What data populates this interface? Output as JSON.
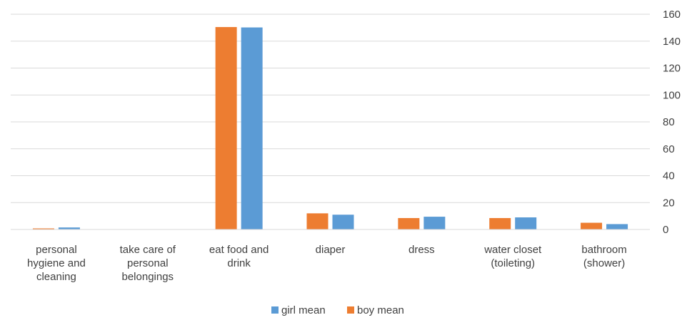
{
  "chart_data": {
    "type": "bar",
    "categories": [
      [
        "personal",
        "hygiene and",
        "cleaning"
      ],
      [
        "take care of",
        "personal",
        "belongings"
      ],
      [
        "eat food and",
        "drink"
      ],
      [
        "diaper"
      ],
      [
        "dress"
      ],
      [
        "water closet",
        "(toileting)"
      ],
      [
        "bathroom",
        "(shower)"
      ]
    ],
    "series": [
      {
        "name": "boy mean",
        "color": "#ED7D31",
        "values": [
          0.8,
          0,
          150.5,
          12,
          8.5,
          8.5,
          5
        ]
      },
      {
        "name": "girl mean",
        "color": "#5B9BD5",
        "values": [
          1.5,
          0,
          150.2,
          11,
          9.5,
          9,
          4
        ]
      }
    ],
    "legend_order": [
      "girl mean",
      "boy mean"
    ],
    "yticks": [
      0,
      20,
      40,
      60,
      80,
      100,
      120,
      140,
      160
    ],
    "ylim": [
      0,
      160
    ],
    "y_axis_side": "right",
    "grid": true,
    "legend_position": "bottom",
    "title": "",
    "xlabel": "",
    "ylabel": ""
  }
}
